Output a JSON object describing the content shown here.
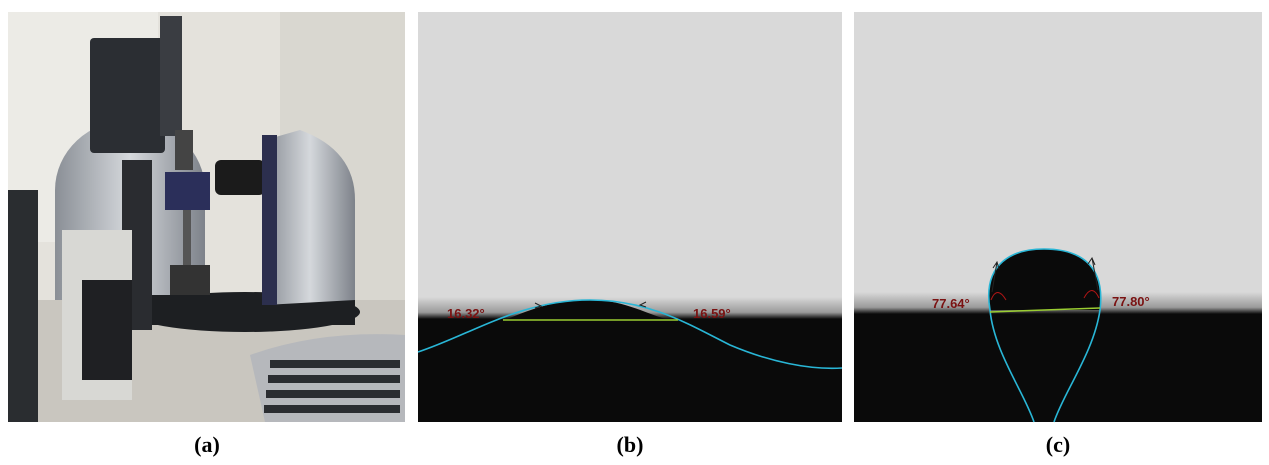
{
  "panels": [
    {
      "label": "(a)"
    },
    {
      "label": "(b)",
      "angles": [
        "16.32°",
        "16.59°"
      ]
    },
    {
      "label": "(c)",
      "angles": [
        "77.64°",
        "77.80°"
      ]
    }
  ]
}
